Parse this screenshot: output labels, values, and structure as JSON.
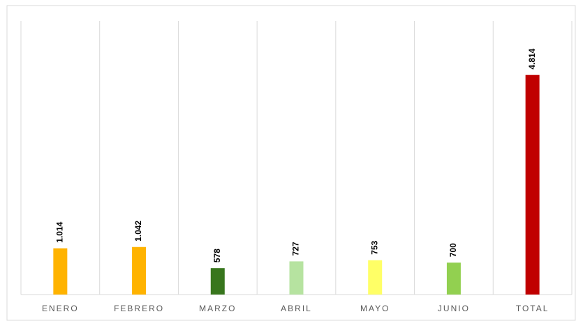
{
  "chart_data": {
    "type": "bar",
    "categories": [
      "ENERO",
      "FEBRERO",
      "MARZO",
      "ABRIL",
      "MAYO",
      "JUNIO",
      "TOTAL"
    ],
    "values": [
      1014,
      1042,
      578,
      727,
      753,
      700,
      4814
    ],
    "value_labels": [
      "1.014",
      "1.042",
      "578",
      "727",
      "753",
      "700",
      "4.814"
    ],
    "colors": [
      "#ffb300",
      "#ffb300",
      "#38761d",
      "#b6e3a0",
      "#ffff66",
      "#92d050",
      "#c00000"
    ],
    "ylim": [
      0,
      6000
    ]
  }
}
